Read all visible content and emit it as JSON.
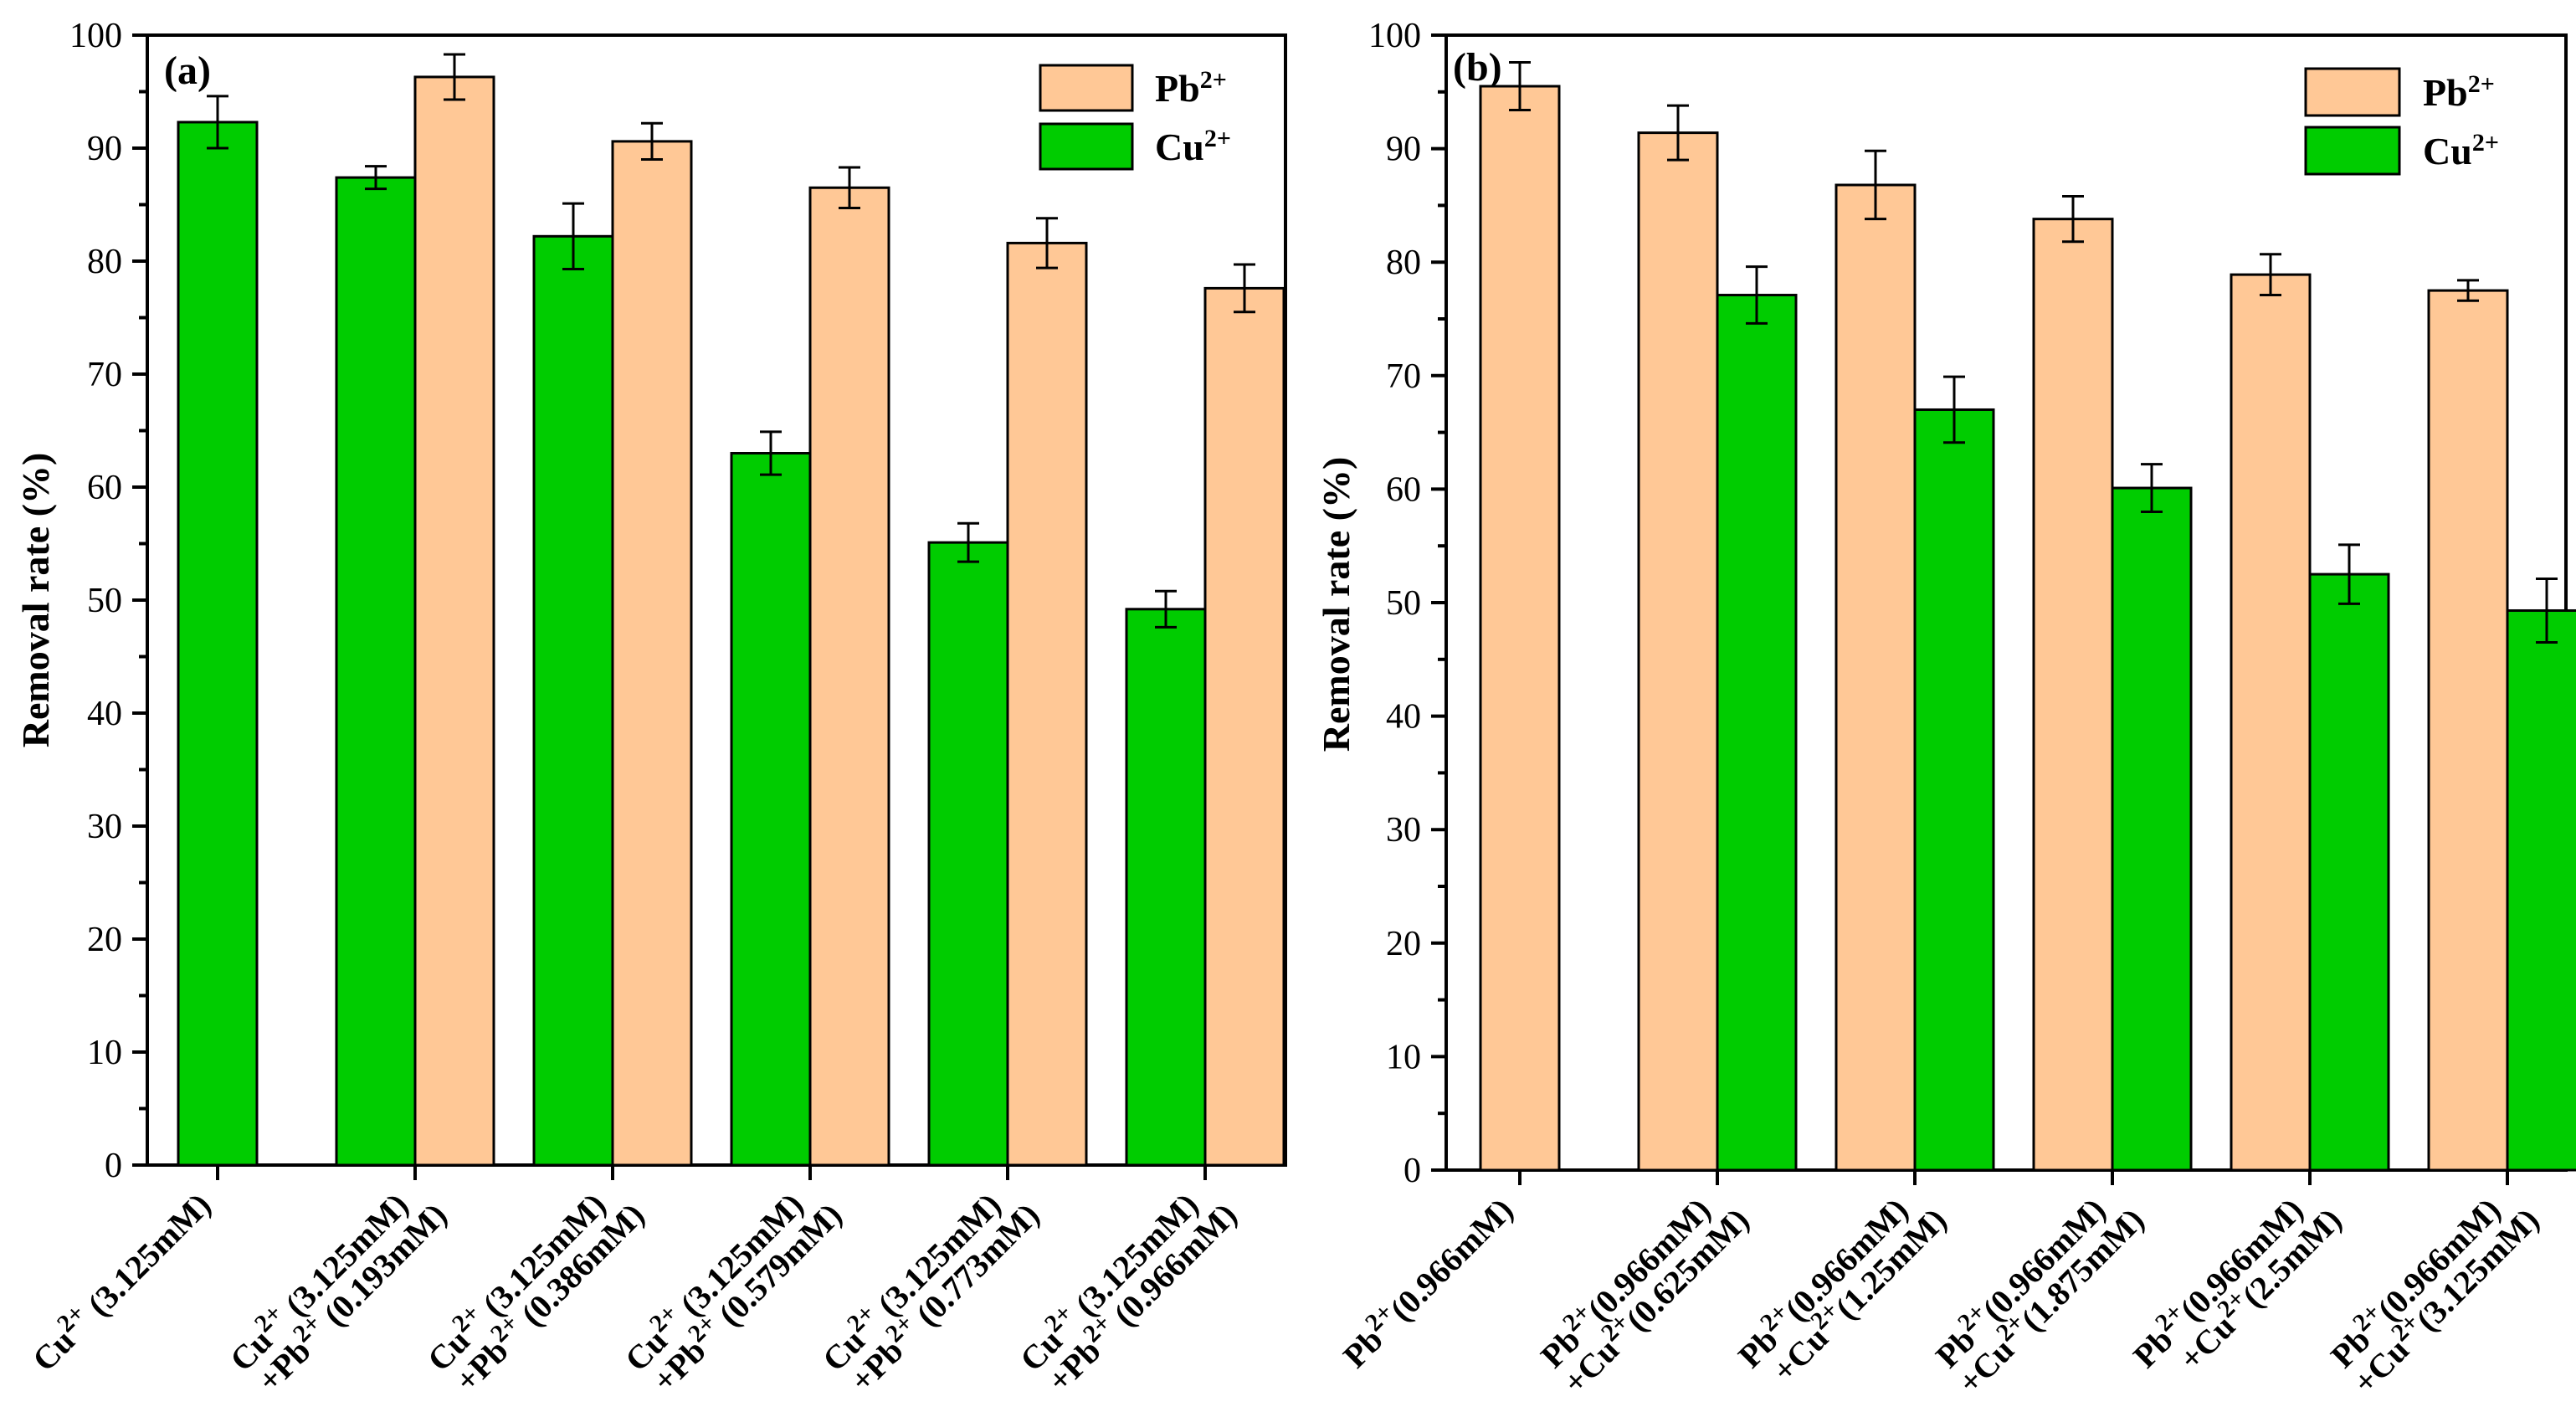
{
  "chart_data": [
    {
      "type": "bar",
      "panel_label": "(a)",
      "ylabel": "Removal rate (%)",
      "ylim": [
        0,
        100
      ],
      "yticks": [
        0,
        10,
        20,
        30,
        40,
        50,
        60,
        70,
        80,
        90,
        100
      ],
      "legend_position": "top-right",
      "legend_order": [
        "Pb2+",
        "Cu2+"
      ],
      "series_defs": {
        "Cu2+": {
          "label": "Cu",
          "sup": "2+",
          "color": "#00cc00"
        },
        "Pb2+": {
          "label": "Pb",
          "sup": "2+",
          "color": "#ffc896"
        }
      },
      "groups": [
        {
          "label_lines": [
            [
              [
                "Cu",
                "2+"
              ],
              [
                " (3.125mM)",
                ""
              ]
            ]
          ],
          "bars": [
            {
              "series": "Cu2+",
              "value": 92.3,
              "err": 2.3
            }
          ]
        },
        {
          "label_lines": [
            [
              [
                "Cu",
                "2+"
              ],
              [
                " (3.125mM)",
                ""
              ]
            ],
            [
              [
                "+Pb",
                "2+"
              ],
              [
                " (0.193mM)",
                ""
              ]
            ]
          ],
          "bars": [
            {
              "series": "Cu2+",
              "value": 87.4,
              "err": 1.0
            },
            {
              "series": "Pb2+",
              "value": 96.3,
              "err": 2.0
            }
          ]
        },
        {
          "label_lines": [
            [
              [
                "Cu",
                "2+"
              ],
              [
                " (3.125mM)",
                ""
              ]
            ],
            [
              [
                "+Pb",
                "2+"
              ],
              [
                " (0.386mM)",
                ""
              ]
            ]
          ],
          "bars": [
            {
              "series": "Cu2+",
              "value": 82.2,
              "err": 2.9
            },
            {
              "series": "Pb2+",
              "value": 90.6,
              "err": 1.6
            }
          ]
        },
        {
          "label_lines": [
            [
              [
                "Cu",
                "2+"
              ],
              [
                " (3.125mM)",
                ""
              ]
            ],
            [
              [
                "+Pb",
                "2+"
              ],
              [
                " (0.579mM)",
                ""
              ]
            ]
          ],
          "bars": [
            {
              "series": "Cu2+",
              "value": 63.0,
              "err": 1.9
            },
            {
              "series": "Pb2+",
              "value": 86.5,
              "err": 1.8
            }
          ]
        },
        {
          "label_lines": [
            [
              [
                "Cu",
                "2+"
              ],
              [
                " (3.125mM)",
                ""
              ]
            ],
            [
              [
                "+Pb",
                "2+"
              ],
              [
                " (0.773mM)",
                ""
              ]
            ]
          ],
          "bars": [
            {
              "series": "Cu2+",
              "value": 55.1,
              "err": 1.7
            },
            {
              "series": "Pb2+",
              "value": 81.6,
              "err": 2.2
            }
          ]
        },
        {
          "label_lines": [
            [
              [
                "Cu",
                "2+"
              ],
              [
                " (3.125mM)",
                ""
              ]
            ],
            [
              [
                "+Pb",
                "2+"
              ],
              [
                " (0.966mM)",
                ""
              ]
            ]
          ],
          "bars": [
            {
              "series": "Cu2+",
              "value": 49.2,
              "err": 1.6
            },
            {
              "series": "Pb2+",
              "value": 77.6,
              "err": 2.1
            }
          ]
        }
      ]
    },
    {
      "type": "bar",
      "panel_label": "(b)",
      "ylabel": "Removal rate (%)",
      "ylim": [
        0,
        100
      ],
      "yticks": [
        0,
        10,
        20,
        30,
        40,
        50,
        60,
        70,
        80,
        90,
        100
      ],
      "legend_position": "top-right",
      "legend_order": [
        "Pb2+",
        "Cu2+"
      ],
      "series_defs": {
        "Pb2+": {
          "label": "Pb",
          "sup": "2+",
          "color": "#ffc896"
        },
        "Cu2+": {
          "label": "Cu",
          "sup": "2+",
          "color": "#00cc00"
        }
      },
      "groups": [
        {
          "label_lines": [
            [
              [
                "Pb",
                "2+"
              ],
              [
                "(0.966mM)",
                ""
              ]
            ]
          ],
          "bars": [
            {
              "series": "Pb2+",
              "value": 95.5,
              "err": 2.1
            }
          ]
        },
        {
          "label_lines": [
            [
              [
                "Pb",
                "2+"
              ],
              [
                "(0.966mM)",
                ""
              ]
            ],
            [
              [
                "+Cu",
                "2+"
              ],
              [
                "(0.625mM)",
                ""
              ]
            ]
          ],
          "bars": [
            {
              "series": "Pb2+",
              "value": 91.4,
              "err": 2.4
            },
            {
              "series": "Cu2+",
              "value": 77.1,
              "err": 2.5
            }
          ]
        },
        {
          "label_lines": [
            [
              [
                "Pb",
                "2+"
              ],
              [
                "(0.966mM)",
                ""
              ]
            ],
            [
              [
                "+Cu",
                "2+"
              ],
              [
                "(1.25mM)",
                ""
              ]
            ]
          ],
          "bars": [
            {
              "series": "Pb2+",
              "value": 86.8,
              "err": 3.0
            },
            {
              "series": "Cu2+",
              "value": 67.0,
              "err": 2.9
            }
          ]
        },
        {
          "label_lines": [
            [
              [
                "Pb",
                "2+"
              ],
              [
                "(0.966mM)",
                ""
              ]
            ],
            [
              [
                "+Cu",
                "2+"
              ],
              [
                "(1.875mM)",
                ""
              ]
            ]
          ],
          "bars": [
            {
              "series": "Pb2+",
              "value": 83.8,
              "err": 2.0
            },
            {
              "series": "Cu2+",
              "value": 60.1,
              "err": 2.1
            }
          ]
        },
        {
          "label_lines": [
            [
              [
                "Pb",
                "2+"
              ],
              [
                "(0.966mM)",
                ""
              ]
            ],
            [
              [
                "+Cu",
                "2+"
              ],
              [
                "(2.5mM)",
                ""
              ]
            ]
          ],
          "bars": [
            {
              "series": "Pb2+",
              "value": 78.9,
              "err": 1.8
            },
            {
              "series": "Cu2+",
              "value": 52.5,
              "err": 2.6
            }
          ]
        },
        {
          "label_lines": [
            [
              [
                "Pb",
                "2+"
              ],
              [
                "(0.966mM)",
                ""
              ]
            ],
            [
              [
                "+Cu",
                "2+"
              ],
              [
                "(3.125mM)",
                ""
              ]
            ]
          ],
          "bars": [
            {
              "series": "Pb2+",
              "value": 77.5,
              "err": 0.9
            },
            {
              "series": "Cu2+",
              "value": 49.3,
              "err": 2.8
            }
          ]
        }
      ]
    }
  ]
}
